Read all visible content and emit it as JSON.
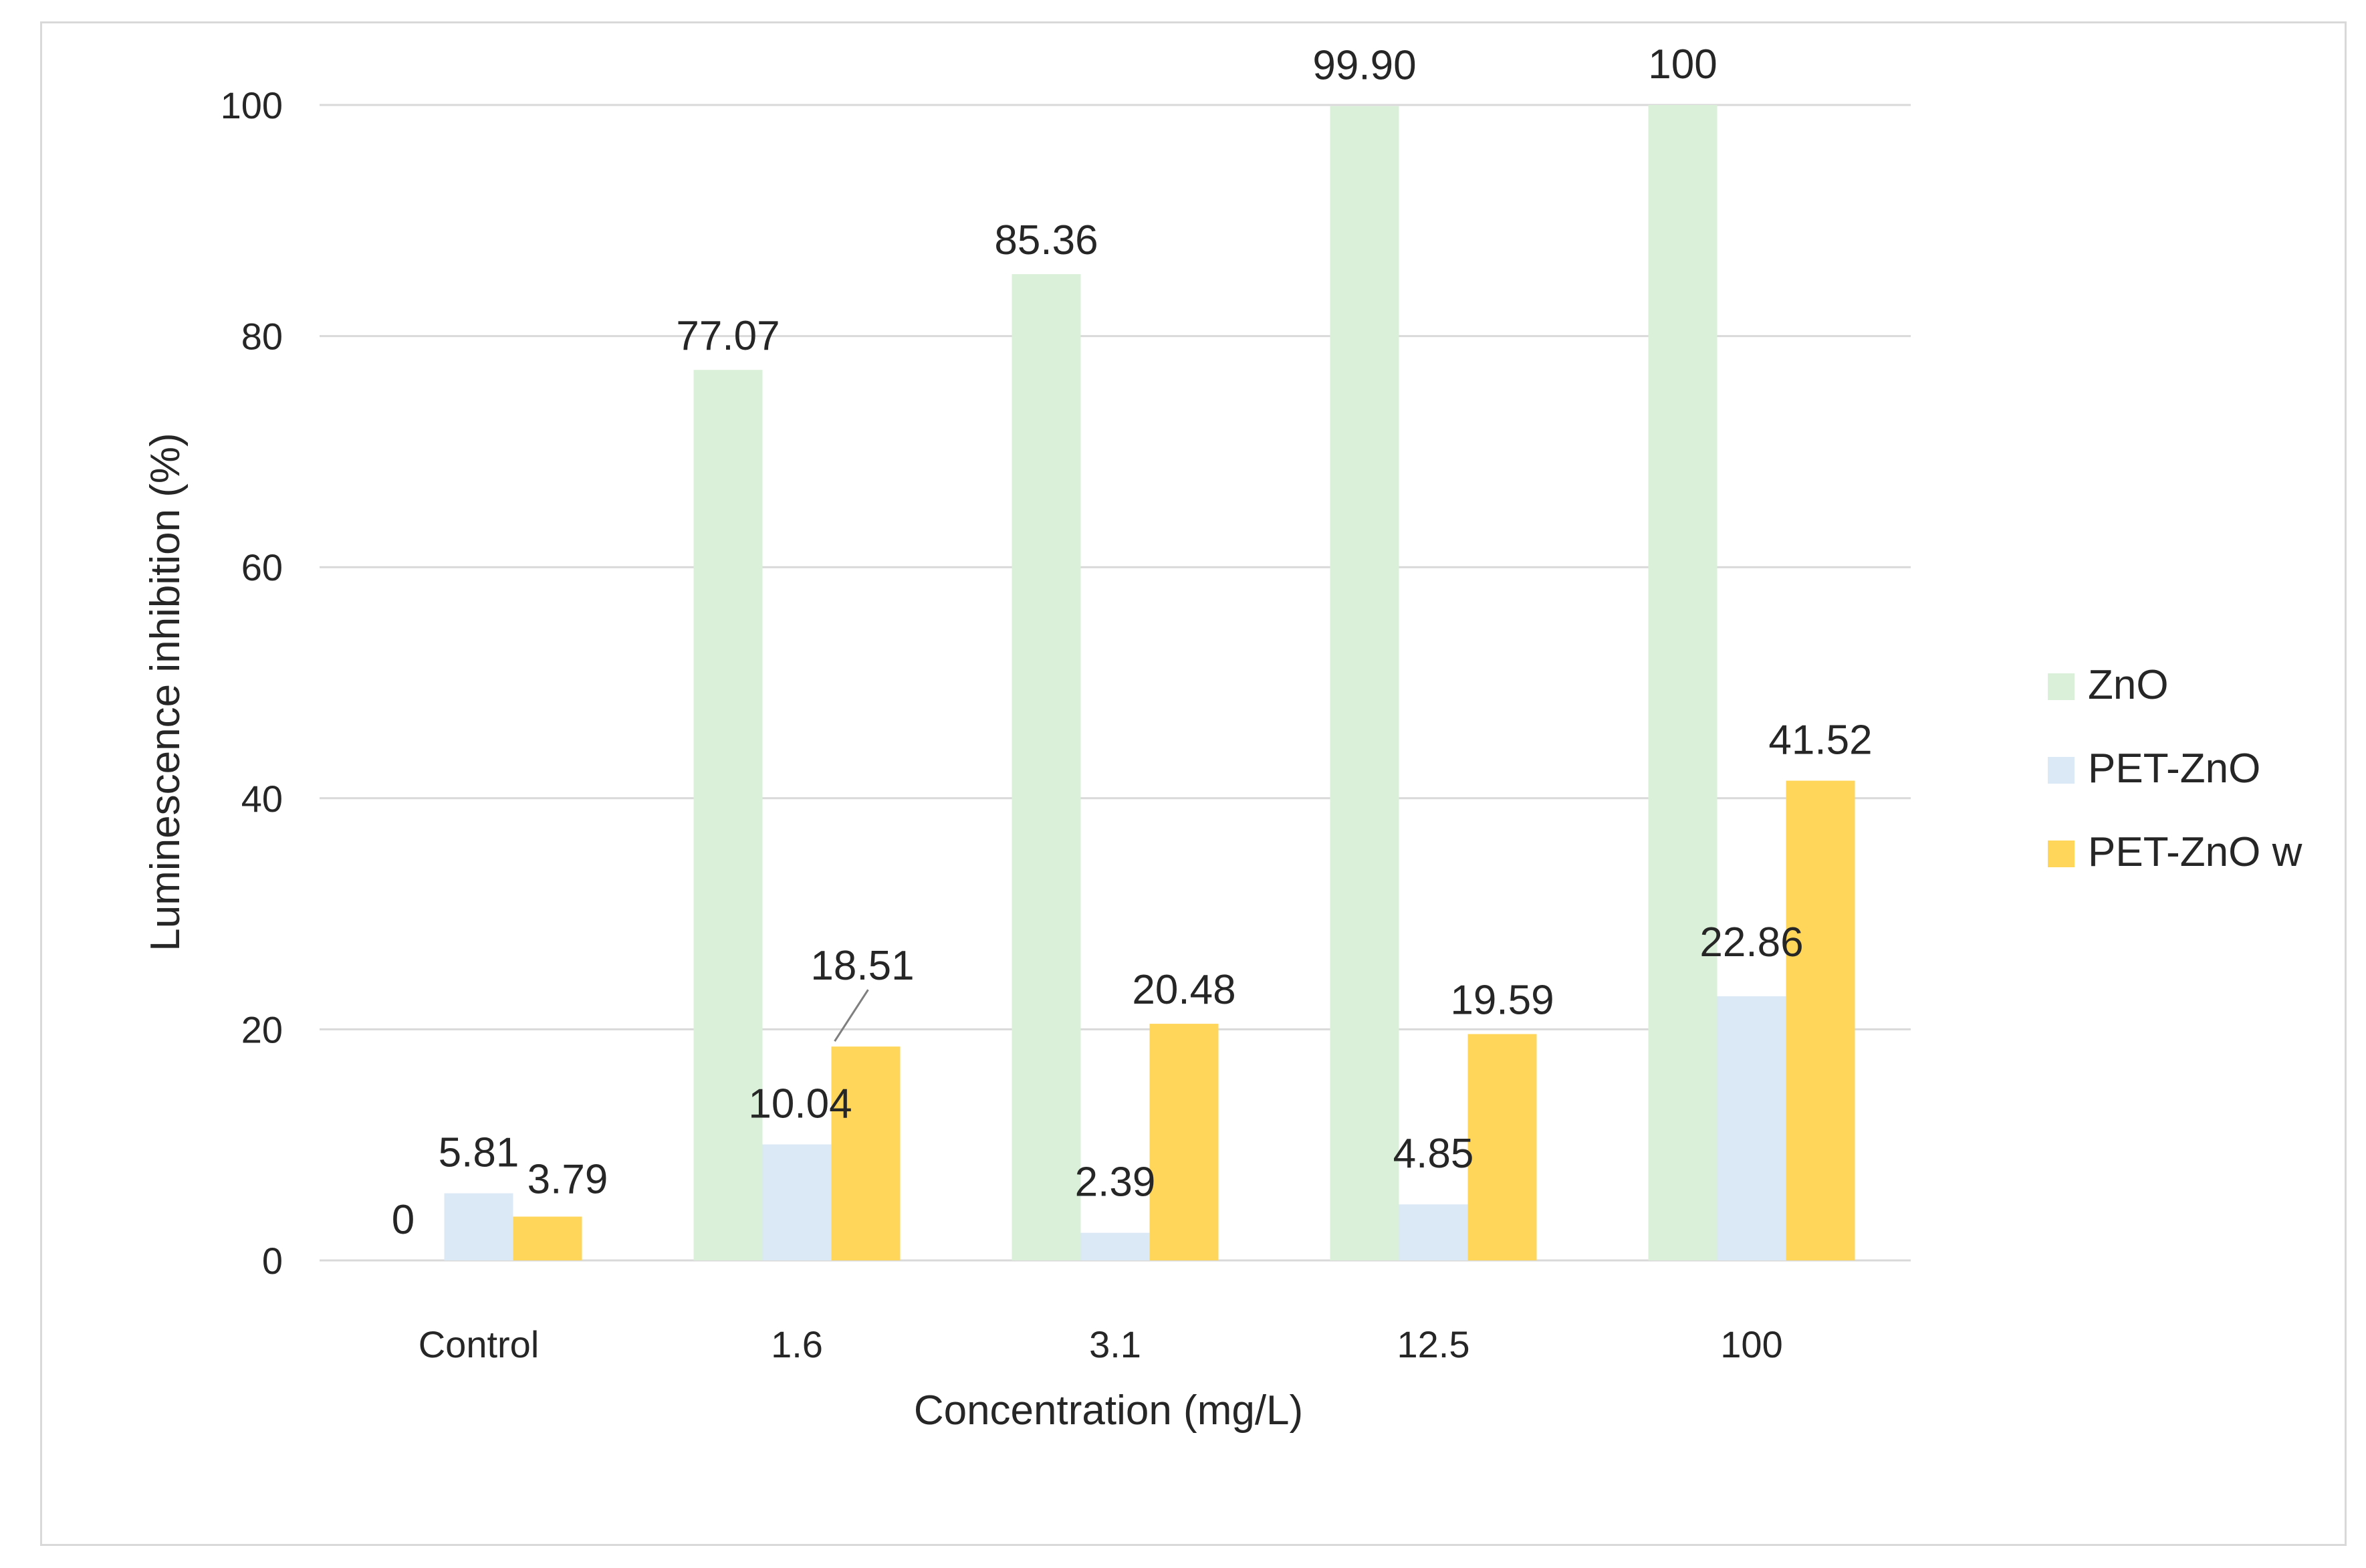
{
  "chart_data": {
    "type": "bar",
    "title": "",
    "xlabel": "Concentration (mg/L)",
    "ylabel": "Luminescence inhibition (%)",
    "ylim": [
      0,
      100
    ],
    "yticks": [
      0,
      20,
      40,
      60,
      80,
      100
    ],
    "grid": true,
    "legend": "right",
    "categories": [
      "Control",
      "1.6",
      "3.1",
      "12.5",
      "100"
    ],
    "series": [
      {
        "name": "ZnO",
        "color": "#daf0d8",
        "values": [
          0,
          77.07,
          85.36,
          99.9,
          100
        ],
        "labels": [
          "0",
          "77.07",
          "85.36",
          "99.90",
          "100"
        ]
      },
      {
        "name": "PET-ZnO",
        "color": "#dbe9f6",
        "values": [
          5.81,
          10.04,
          2.39,
          4.85,
          22.86
        ],
        "labels": [
          "5.81",
          "10.04",
          "2.39",
          "4.85",
          "22.86"
        ]
      },
      {
        "name": "PET-ZnO w",
        "color": "#ffd65a",
        "values": [
          3.79,
          18.51,
          20.48,
          19.59,
          41.52
        ],
        "labels": [
          "3.79",
          "18.51",
          "20.48",
          "19.59",
          "41.52"
        ]
      }
    ]
  }
}
